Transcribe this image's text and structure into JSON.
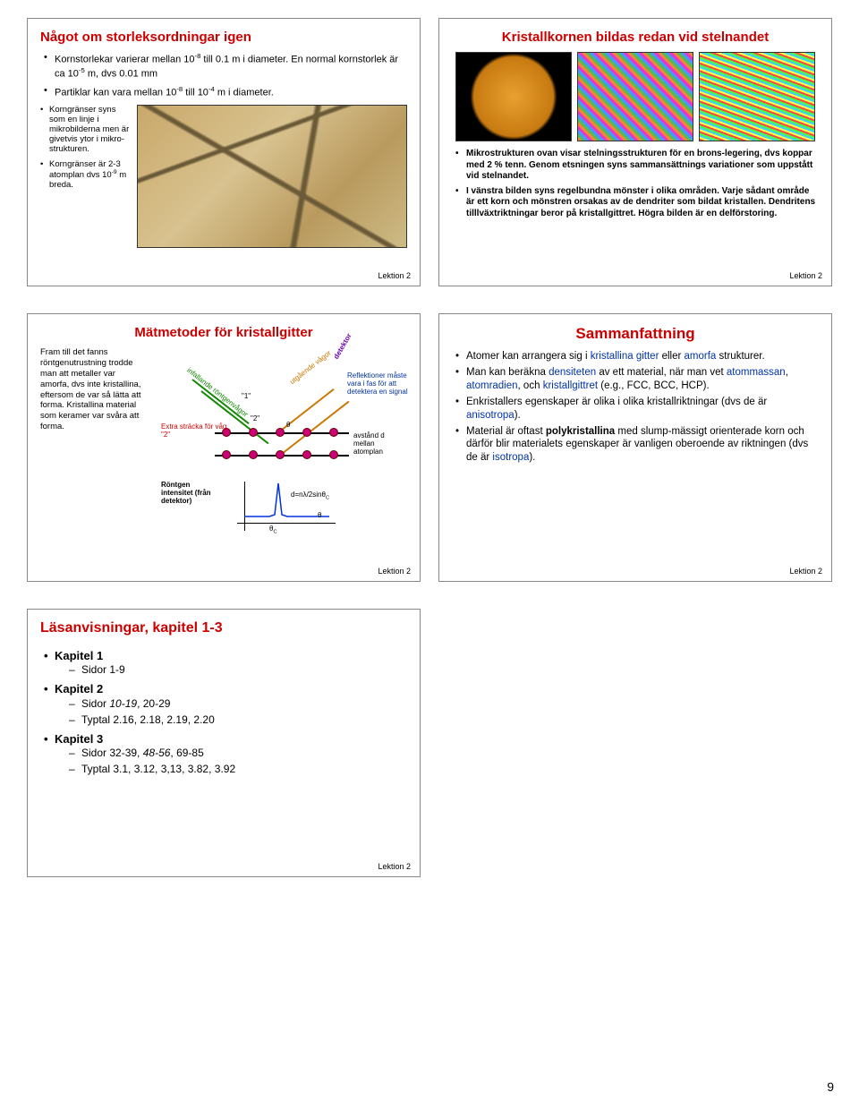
{
  "page_number": "9",
  "footer": "Lektion 2",
  "slide1": {
    "title": "Något om storleksordningar igen",
    "bullets": [
      {
        "pre": "Kornstorlekar varierar mellan 10",
        "sup1": "-8",
        "mid": " till 0.1 m i diameter. En normal kornstorlek är ca 10",
        "sup2": "-5",
        "post": " m, dvs 0.01 mm"
      },
      {
        "pre": "Partiklar kan vara mellan 10",
        "sup1": "-8",
        "mid": " till 10",
        "sup2": "-4",
        "post": " m i diameter."
      }
    ],
    "left": [
      "Korngränser syns som en linje i mikrobilderna men är givetvis ytor i mikro-strukturen.",
      {
        "pre": "Korngränser är 2-3 atomplan dvs 10",
        "sup": "-9",
        "post": " m breda."
      }
    ]
  },
  "slide2": {
    "title": "Kristallkornen bildas redan vid stelnandet",
    "bullets": [
      "Mikrostrukturen ovan visar stelningsstrukturen för en brons-legering, dvs koppar med 2 % tenn. Genom etsningen syns sammansättnings variationer som uppstått vid stelnandet.",
      "I vänstra bilden syns regelbundna mönster i olika områden. Varje sådant område är ett korn och mönstren orsakas av de dendriter som bildat kristallen. Dendritens tilllväxtriktningar beror på kristallgittret. Högra bilden är en delförstoring."
    ]
  },
  "slide3": {
    "title": "Mätmetoder för kristallgitter",
    "left": "Fram till det fanns röntgenutrustning trodde man att metaller var amorfa, dvs inte kristallina, eftersom de var så lätta att forma. Kristallina material som keramer var svåra att forma.",
    "labels": {
      "infall": "infallande röntgenvågor",
      "one": "\"1\"",
      "two": "\"2\"",
      "extra": "Extra sträcka för våg \"2\"",
      "utga": "utgående vågor",
      "detektor": "detektor",
      "reflekt": "Reflektioner måste vara i fas för att detektera en signal",
      "avstand": "avstånd d mellan atomplan",
      "rontgen": "Röntgen intensitet (från detektor)",
      "formula_pre": "d=n",
      "formula_lambda": "λ",
      "formula_mid": "/2sin",
      "formula_theta": "θ",
      "formula_c": "C",
      "theta": "θ",
      "thetac": "θ",
      "thetac_c": "C"
    }
  },
  "slide4": {
    "title": "Sammanfattning",
    "items": [
      {
        "parts": [
          {
            "t": "Atomer kan arrangera sig i "
          },
          {
            "t": "kristallina gitter",
            "c": "blue"
          },
          {
            "t": " eller "
          },
          {
            "t": "amorfa",
            "c": "blue"
          },
          {
            "t": " strukturer."
          }
        ]
      },
      {
        "parts": [
          {
            "t": "Man kan beräkna "
          },
          {
            "t": "densiteten",
            "c": "blue"
          },
          {
            "t": " av ett material, när man vet "
          },
          {
            "t": "atommassan",
            "c": "blue"
          },
          {
            "t": ", "
          },
          {
            "t": "atomradien",
            "c": "blue"
          },
          {
            "t": ", och "
          },
          {
            "t": "kristallgittret",
            "c": "blue"
          },
          {
            "t": " (e.g., FCC, BCC, HCP)."
          }
        ]
      },
      {
        "parts": [
          {
            "t": "Enkristallers egenskaper är olika i olika kristallriktningar (dvs de är "
          },
          {
            "t": "anisotropa",
            "c": "blue"
          },
          {
            "t": ")."
          }
        ]
      },
      {
        "parts": [
          {
            "t": "Material är oftast "
          },
          {
            "t": "polykristallina",
            "b": true
          },
          {
            "t": " med slump-mässigt orienterade korn och därför blir materialets egenskaper är vanligen oberoende av riktningen (dvs de är "
          },
          {
            "t": "isotropa",
            "c": "blue"
          },
          {
            "t": ")."
          }
        ]
      }
    ]
  },
  "slide5": {
    "title": "Läsanvisningar, kapitel 1-3",
    "items": [
      {
        "label": "Kapitel 1",
        "subs": [
          {
            "t": "Sidor 1-9"
          }
        ]
      },
      {
        "label": "Kapitel 2",
        "subs": [
          {
            "parts": [
              {
                "t": "Sidor "
              },
              {
                "t": "10-19",
                "i": true
              },
              {
                "t": ", 20-29"
              }
            ]
          },
          {
            "t": "Typtal 2.16, 2.18, 2.19, 2.20"
          }
        ]
      },
      {
        "label": "Kapitel 3",
        "subs": [
          {
            "parts": [
              {
                "t": "Sidor 32-39, "
              },
              {
                "t": "48-56",
                "i": true
              },
              {
                "t": ", 69-85"
              }
            ]
          },
          {
            "t": "Typtal 3.1, 3.12, 3,13, 3.82, 3.92"
          }
        ]
      }
    ]
  }
}
